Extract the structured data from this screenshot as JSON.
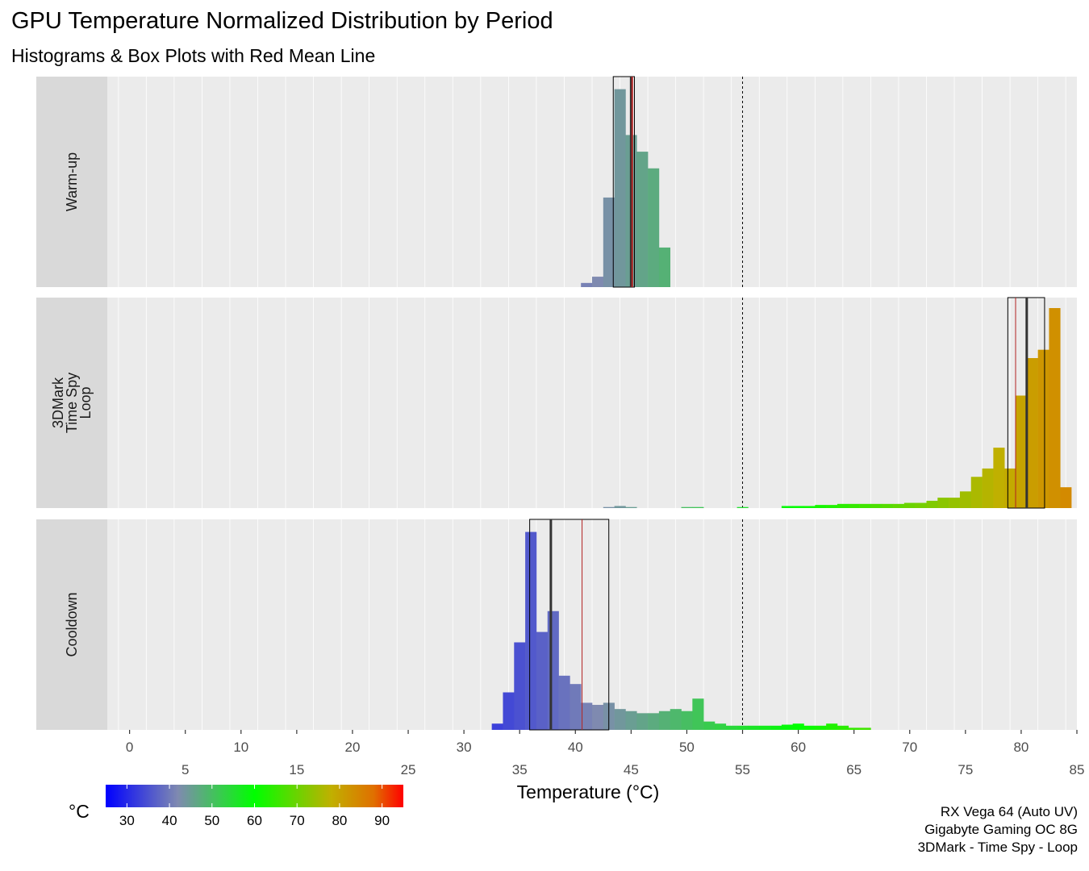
{
  "title": "GPU Temperature Normalized Distribution by Period",
  "subtitle": "Histograms & Box Plots with Red Mean Line",
  "caption": [
    "RX Vega 64 (Auto UV)",
    "Gigabyte Gaming OC 8G",
    "3DMark - Time Spy - Loop"
  ],
  "chart_data": {
    "type": "histogram",
    "xlabel": "Temperature (°C)",
    "xlim": [
      -2,
      85
    ],
    "x_ticks_top_row": [
      0,
      10,
      20,
      30,
      40,
      50,
      60,
      70,
      80
    ],
    "x_ticks_bottom_row": [
      5,
      15,
      25,
      35,
      45,
      55,
      65,
      75,
      85
    ],
    "bin_width": 1,
    "reference_line": {
      "x": 55,
      "style": "dashed"
    },
    "mean_line_color": "#b22222",
    "panels": [
      {
        "label": "Warm-up",
        "bins": [
          [
            41,
            0.02
          ],
          [
            42,
            0.05
          ],
          [
            43,
            0.43
          ],
          [
            44,
            0.95
          ],
          [
            45,
            0.73
          ],
          [
            46,
            0.65
          ],
          [
            47,
            0.57
          ],
          [
            48,
            0.19
          ]
        ],
        "box": {
          "q1": 43.4,
          "median": 45.0,
          "q3": 45.3,
          "mean": 45.1
        }
      },
      {
        "label": "3DMark\nTime Spy\nLoop",
        "bins": [
          [
            43,
            0.005
          ],
          [
            44,
            0.01
          ],
          [
            45,
            0.005
          ],
          [
            50,
            0.005
          ],
          [
            51,
            0.005
          ],
          [
            55,
            0.005
          ],
          [
            59,
            0.01
          ],
          [
            60,
            0.01
          ],
          [
            61,
            0.01
          ],
          [
            62,
            0.015
          ],
          [
            63,
            0.015
          ],
          [
            64,
            0.02
          ],
          [
            65,
            0.02
          ],
          [
            66,
            0.02
          ],
          [
            67,
            0.02
          ],
          [
            68,
            0.02
          ],
          [
            69,
            0.02
          ],
          [
            70,
            0.025
          ],
          [
            71,
            0.025
          ],
          [
            72,
            0.035
          ],
          [
            73,
            0.05
          ],
          [
            74,
            0.05
          ],
          [
            75,
            0.08
          ],
          [
            76,
            0.15
          ],
          [
            77,
            0.19
          ],
          [
            78,
            0.29
          ],
          [
            79,
            0.19
          ],
          [
            80,
            0.54
          ],
          [
            81,
            0.72
          ],
          [
            82,
            0.76
          ],
          [
            83,
            0.96
          ],
          [
            84,
            0.1
          ]
        ],
        "box": {
          "q1": 78.8,
          "median": 80.5,
          "q3": 82.1,
          "mean": 79.5
        }
      },
      {
        "label": "Cooldown",
        "bins": [
          [
            33,
            0.03
          ],
          [
            34,
            0.18
          ],
          [
            35,
            0.42
          ],
          [
            36,
            0.95
          ],
          [
            37,
            0.47
          ],
          [
            38,
            0.57
          ],
          [
            39,
            0.26
          ],
          [
            40,
            0.22
          ],
          [
            41,
            0.13
          ],
          [
            42,
            0.12
          ],
          [
            43,
            0.13
          ],
          [
            44,
            0.1
          ],
          [
            45,
            0.09
          ],
          [
            46,
            0.08
          ],
          [
            47,
            0.08
          ],
          [
            48,
            0.09
          ],
          [
            49,
            0.1
          ],
          [
            50,
            0.09
          ],
          [
            51,
            0.15
          ],
          [
            52,
            0.04
          ],
          [
            53,
            0.03
          ],
          [
            54,
            0.02
          ],
          [
            55,
            0.02
          ],
          [
            56,
            0.02
          ],
          [
            57,
            0.02
          ],
          [
            58,
            0.02
          ],
          [
            59,
            0.025
          ],
          [
            60,
            0.03
          ],
          [
            61,
            0.02
          ],
          [
            62,
            0.02
          ],
          [
            63,
            0.03
          ],
          [
            64,
            0.02
          ],
          [
            65,
            0.01
          ],
          [
            66,
            0.01
          ]
        ],
        "box": {
          "q1": 35.9,
          "median": 37.8,
          "q3": 43.0,
          "mean": 40.6
        }
      }
    ],
    "colorbar": {
      "label": "°C",
      "range": [
        25,
        95
      ],
      "ticks": [
        30,
        40,
        50,
        60,
        70,
        80,
        90
      ],
      "stops": [
        [
          25,
          "#0000ff"
        ],
        [
          42,
          "#7f8ab0"
        ],
        [
          60,
          "#00ff00"
        ],
        [
          78,
          "#c0b000"
        ],
        [
          88,
          "#e07000"
        ],
        [
          95,
          "#ff0000"
        ]
      ]
    }
  }
}
